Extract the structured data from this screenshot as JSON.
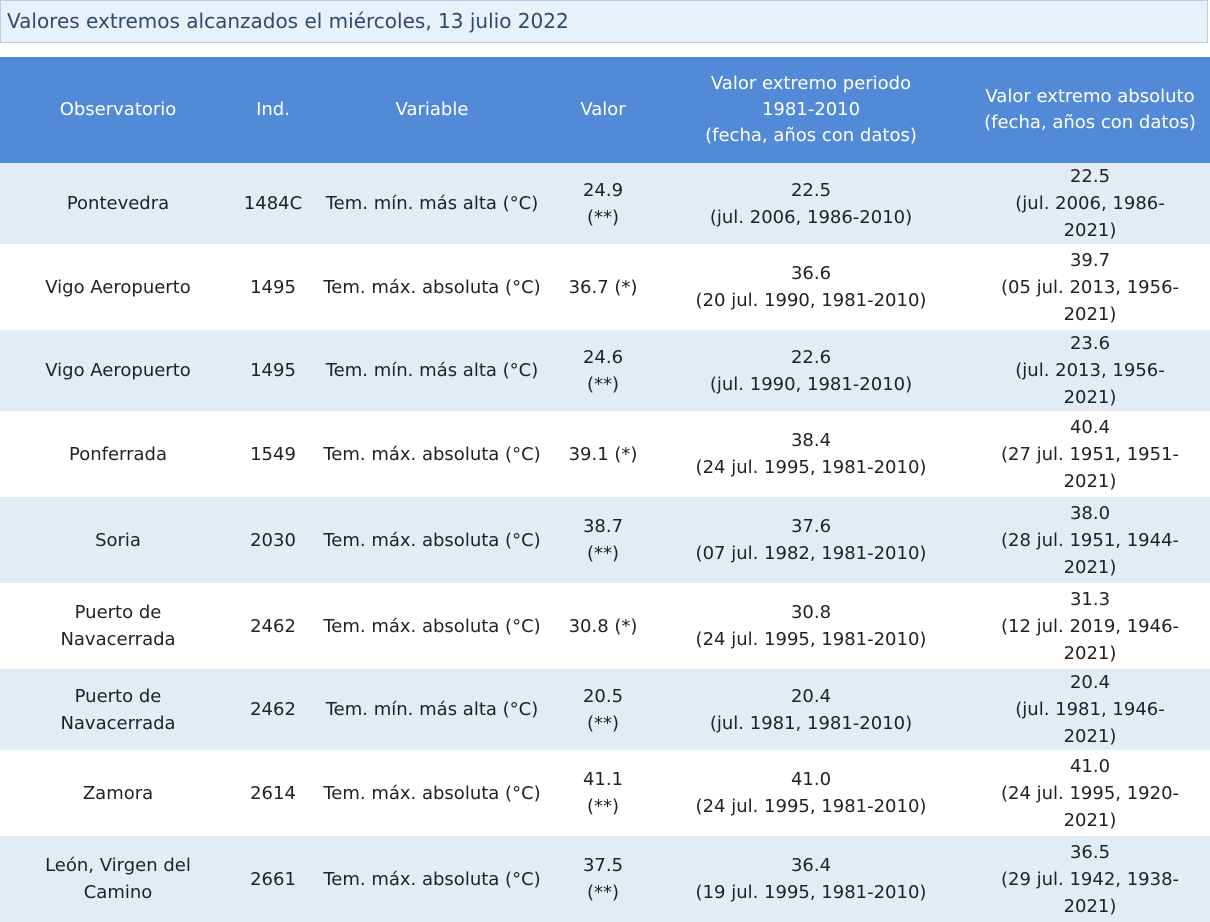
{
  "title": "Valores extremos alcanzados el miércoles, 13 julio 2022",
  "headers": {
    "observatorio": "Observatorio",
    "ind": "Ind.",
    "variable": "Variable",
    "valor": "Valor",
    "periodo": "Valor extremo periodo 1981-2010",
    "periodo_sub": "(fecha, años con datos)",
    "absoluto": "Valor extremo absoluto",
    "absoluto_sub": "(fecha, años con datos)"
  },
  "rows": [
    {
      "observatorio": "Pontevedra",
      "ind": "1484C",
      "variable": "Tem. mín. más alta (°C)",
      "valor": "24.9 (**)",
      "periodo_valor": "22.5",
      "periodo_fecha": "(jul. 2006, 1986-2010)",
      "absoluto_valor": "22.5",
      "absoluto_fecha": "(jul. 2006, 1986-2021)"
    },
    {
      "observatorio": "Vigo Aeropuerto",
      "ind": "1495",
      "variable": "Tem. máx. absoluta (°C)",
      "valor": "36.7 (*)",
      "periodo_valor": "36.6",
      "periodo_fecha": "(20 jul. 1990, 1981-2010)",
      "absoluto_valor": "39.7",
      "absoluto_fecha": "(05 jul. 2013, 1956-2021)"
    },
    {
      "observatorio": "Vigo Aeropuerto",
      "ind": "1495",
      "variable": "Tem. mín. más alta (°C)",
      "valor": "24.6 (**)",
      "periodo_valor": "22.6",
      "periodo_fecha": "(jul. 1990, 1981-2010)",
      "absoluto_valor": "23.6",
      "absoluto_fecha": "(jul. 2013, 1956-2021)"
    },
    {
      "observatorio": "Ponferrada",
      "ind": "1549",
      "variable": "Tem. máx. absoluta (°C)",
      "valor": "39.1 (*)",
      "periodo_valor": "38.4",
      "periodo_fecha": "(24 jul. 1995, 1981-2010)",
      "absoluto_valor": "40.4",
      "absoluto_fecha": "(27 jul. 1951, 1951-2021)"
    },
    {
      "observatorio": "Soria",
      "ind": "2030",
      "variable": "Tem. máx. absoluta (°C)",
      "valor": "38.7 (**)",
      "periodo_valor": "37.6",
      "periodo_fecha": "(07 jul. 1982, 1981-2010)",
      "absoluto_valor": "38.0",
      "absoluto_fecha": "(28 jul. 1951, 1944-2021)"
    },
    {
      "observatorio": "Puerto de Navacerrada",
      "ind": "2462",
      "variable": "Tem. máx. absoluta (°C)",
      "valor": "30.8 (*)",
      "periodo_valor": "30.8",
      "periodo_fecha": "(24 jul. 1995, 1981-2010)",
      "absoluto_valor": "31.3",
      "absoluto_fecha": "(12 jul. 2019, 1946-2021)"
    },
    {
      "observatorio": "Puerto de Navacerrada",
      "ind": "2462",
      "variable": "Tem. mín. más alta (°C)",
      "valor": "20.5 (**)",
      "periodo_valor": "20.4",
      "periodo_fecha": "(jul. 1981, 1981-2010)",
      "absoluto_valor": "20.4",
      "absoluto_fecha": "(jul. 1981, 1946-2021)"
    },
    {
      "observatorio": "Zamora",
      "ind": "2614",
      "variable": "Tem. máx. absoluta (°C)",
      "valor": "41.1 (**)",
      "periodo_valor": "41.0",
      "periodo_fecha": "(24 jul. 1995, 1981-2010)",
      "absoluto_valor": "41.0",
      "absoluto_fecha": "(24 jul. 1995, 1920-2021)"
    },
    {
      "observatorio": "León, Virgen del Camino",
      "ind": "2661",
      "variable": "Tem. máx. absoluta (°C)",
      "valor": "37.5 (**)",
      "periodo_valor": "36.4",
      "periodo_fecha": "(19 jul. 1995, 1981-2010)",
      "absoluto_valor": "36.5",
      "absoluto_fecha": "(29 jul. 1942, 1938-2021)"
    }
  ]
}
